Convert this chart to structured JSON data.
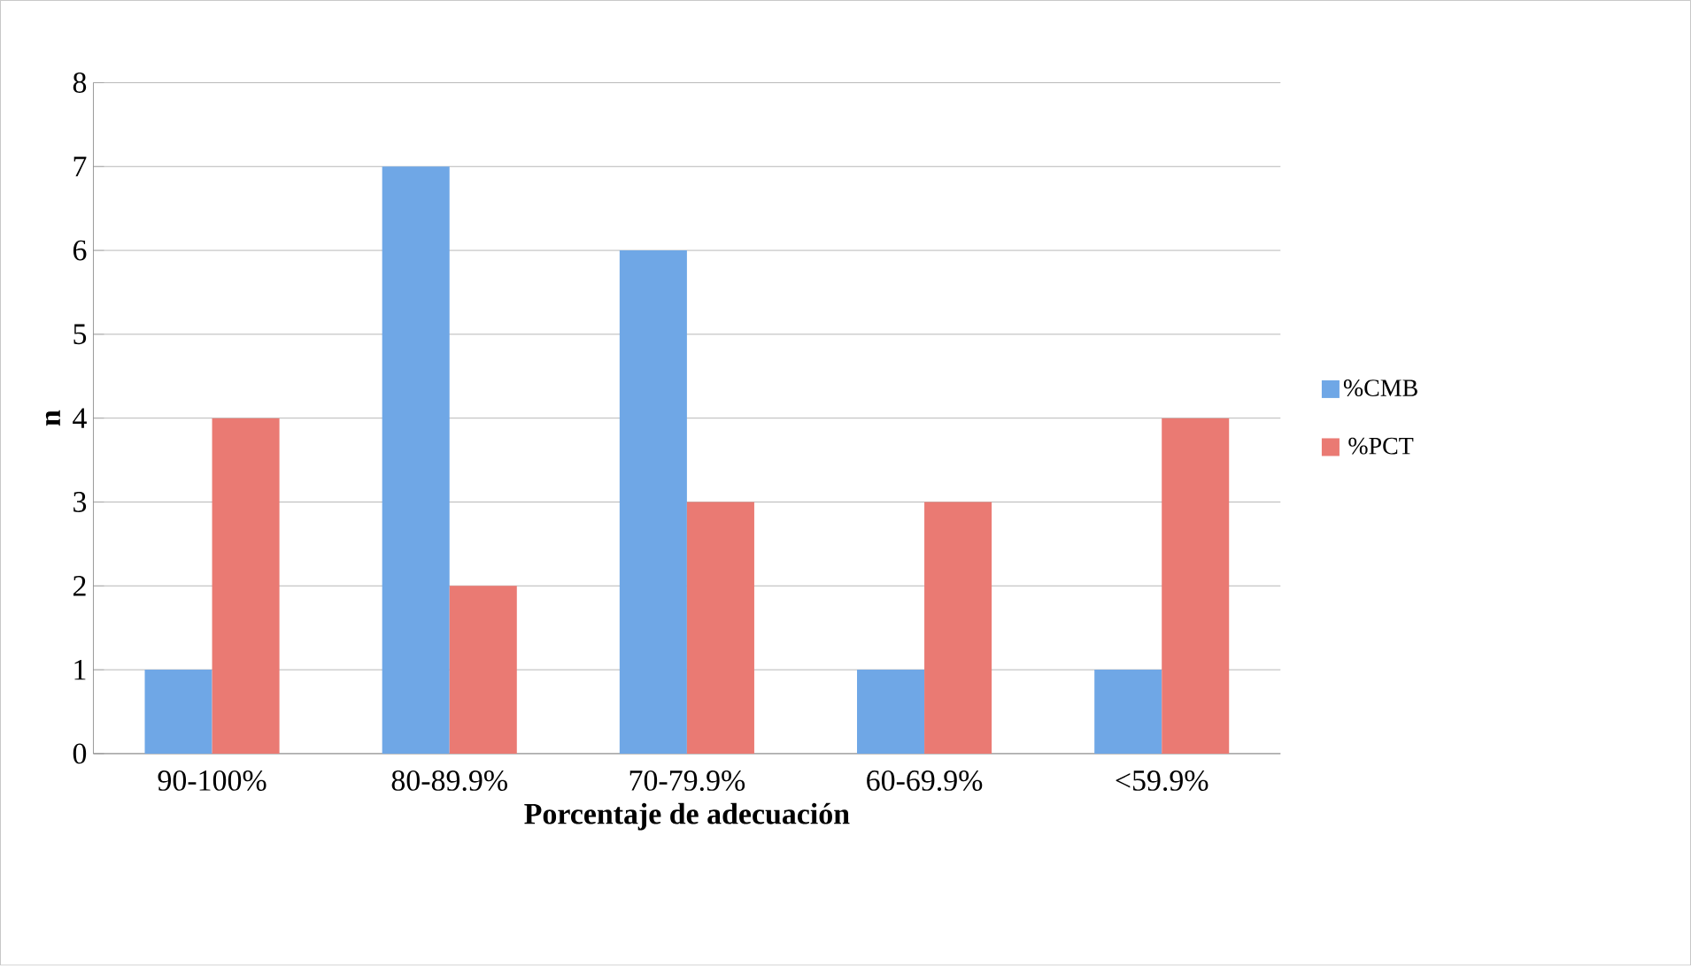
{
  "chart_data": {
    "type": "bar",
    "xlabel": "Porcentaje de adecuación",
    "ylabel": "n",
    "categories": [
      "90-100%",
      "80-89.9%",
      "70-79.9%",
      "60-69.9%",
      "<59.9%"
    ],
    "series": [
      {
        "name": "%CMB",
        "color": "#6fa7e6",
        "values": [
          1,
          7,
          6,
          1,
          1
        ]
      },
      {
        "name": "%PCT",
        "color": "#ea7a73",
        "values": [
          4,
          2,
          3,
          3,
          4
        ]
      }
    ],
    "ylim": [
      0,
      8
    ],
    "yticks": [
      0,
      1,
      2,
      3,
      4,
      5,
      6,
      7,
      8
    ],
    "grid": "y",
    "legend": "right"
  }
}
